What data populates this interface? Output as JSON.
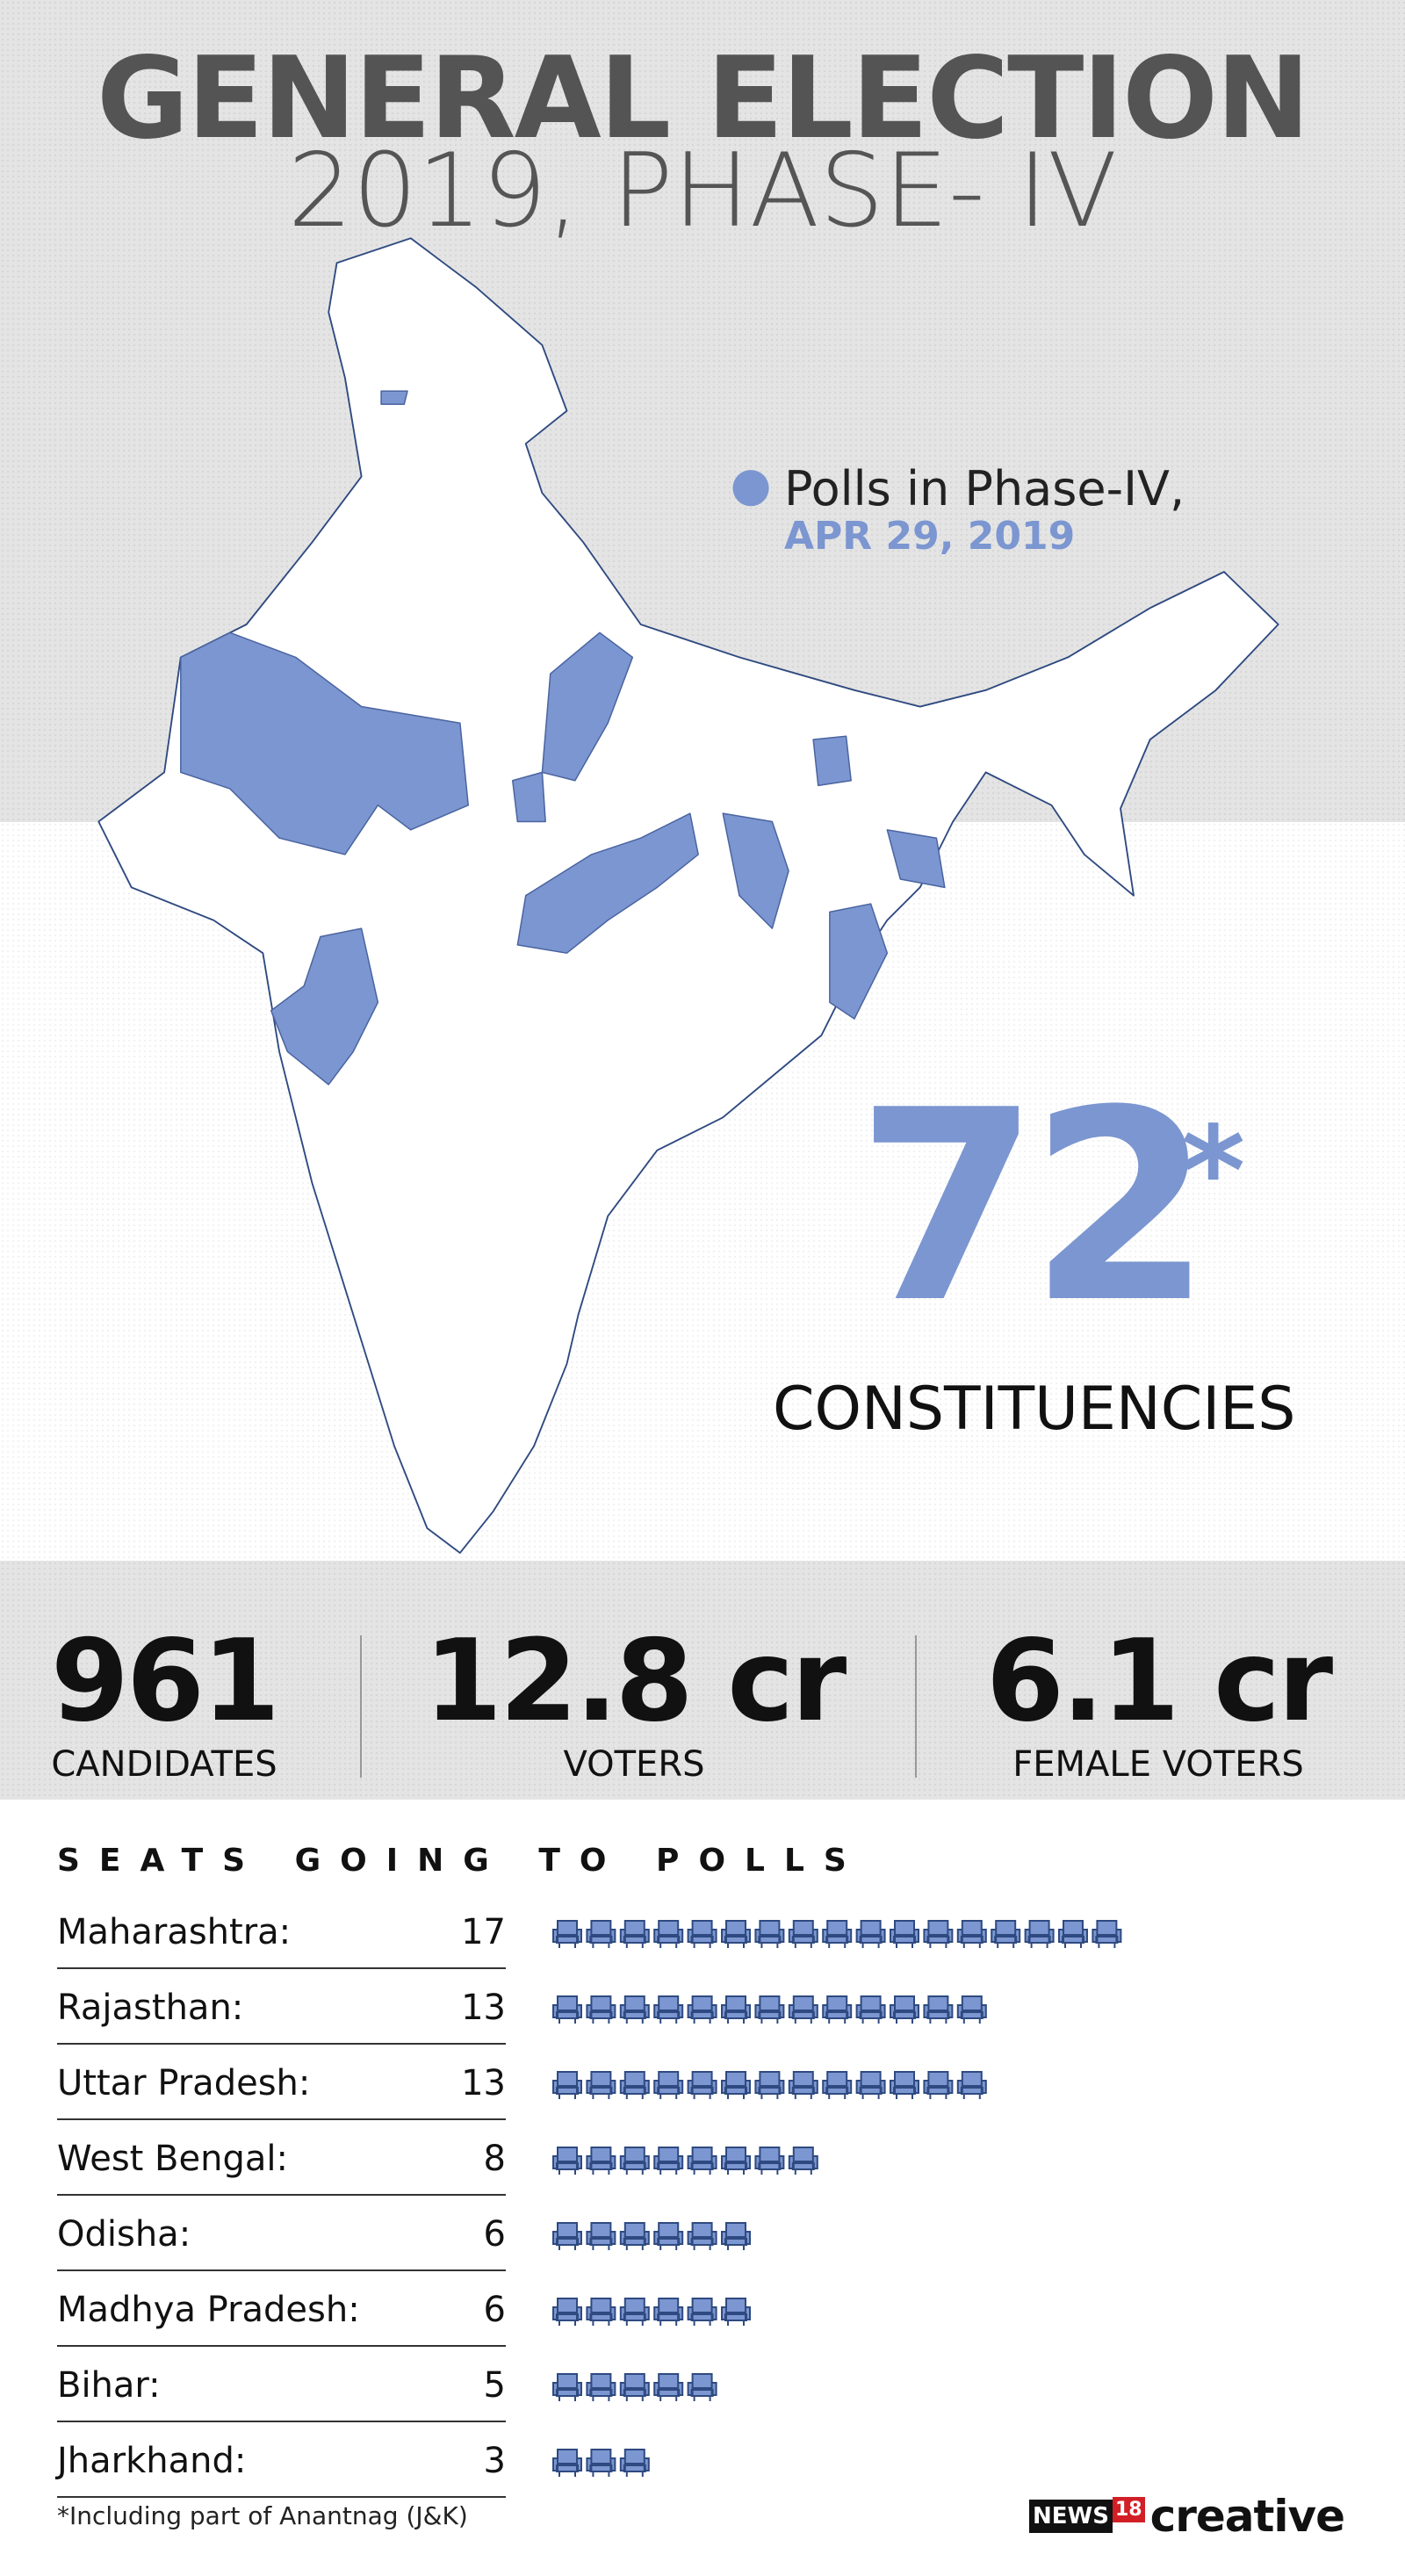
{
  "header": {
    "title": "GENERAL ELECTION",
    "subtitle": "2019, PHASE- IV"
  },
  "legend": {
    "label": "Polls in Phase-IV,",
    "date": "APR 29, 2019"
  },
  "highlight": {
    "number": "72",
    "mark": "*",
    "label": "CONSTITUENCIES"
  },
  "stats": [
    {
      "value": "961",
      "label": "CANDIDATES"
    },
    {
      "value": "12.8 cr",
      "label": "VOTERS"
    },
    {
      "value": "6.1 cr",
      "label": "FEMALE VOTERS"
    }
  ],
  "seats": {
    "title": "SEATS GOING TO POLLS",
    "rows": [
      {
        "state": "Maharashtra:",
        "count": 17
      },
      {
        "state": "Rajasthan:",
        "count": 13
      },
      {
        "state": "Uttar Pradesh:",
        "count": 13
      },
      {
        "state": "West Bengal:",
        "count": 8
      },
      {
        "state": "Odisha:",
        "count": 6
      },
      {
        "state": "Madhya Pradesh:",
        "count": 6
      },
      {
        "state": "Bihar:",
        "count": 5
      },
      {
        "state": "Jharkhand:",
        "count": 3
      }
    ]
  },
  "footnote": "*Including part of Anantnag (J&K)",
  "logo": {
    "brand": "NEWS",
    "number": "18",
    "text": "creative"
  }
}
